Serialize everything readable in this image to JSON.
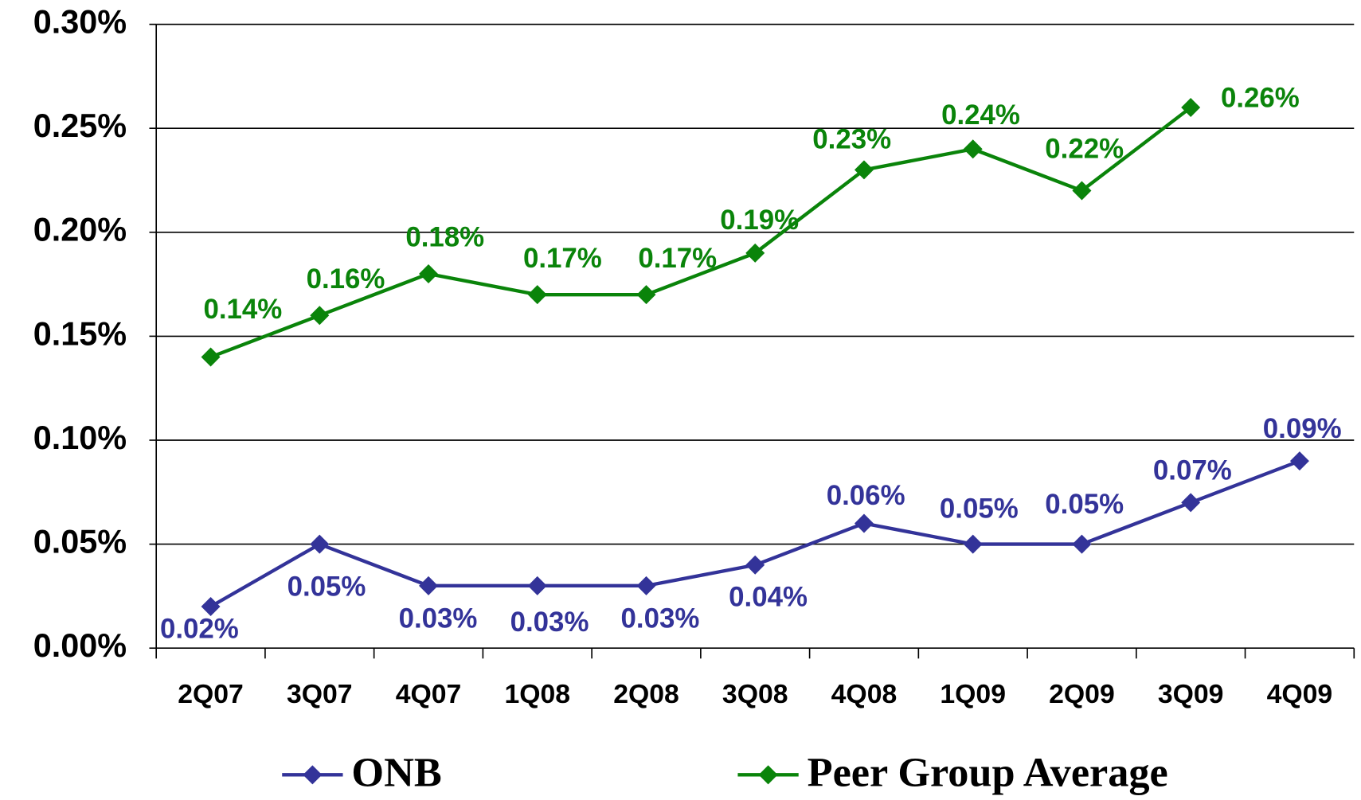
{
  "chart_data": {
    "type": "line",
    "categories": [
      "2Q07",
      "3Q07",
      "4Q07",
      "1Q08",
      "2Q08",
      "3Q08",
      "4Q08",
      "1Q09",
      "2Q09",
      "3Q09",
      "4Q09"
    ],
    "series": [
      {
        "name": "ONB",
        "color": "#333399",
        "values": [
          0.02,
          0.05,
          0.03,
          0.03,
          0.03,
          0.04,
          0.06,
          0.05,
          0.05,
          0.07,
          0.09
        ],
        "value_labels": [
          "0.02%",
          "0.05%",
          "0.03%",
          "0.03%",
          "0.03%",
          "0.04%",
          "0.06%",
          "0.05%",
          "0.05%",
          "0.07%",
          "0.09%"
        ]
      },
      {
        "name": "Peer Group Average",
        "color": "#0a840a",
        "values": [
          0.14,
          0.16,
          0.18,
          0.17,
          0.17,
          0.19,
          0.23,
          0.24,
          0.22,
          0.26,
          null
        ],
        "value_labels": [
          "0.14%",
          "0.16%",
          "0.18%",
          "0.17%",
          "0.17%",
          "0.19%",
          "0.23%",
          "0.24%",
          "0.22%",
          "0.26%",
          null
        ]
      }
    ],
    "ylim": [
      0,
      0.3
    ],
    "yticks": [
      {
        "value": 0,
        "label": "0.00%"
      },
      {
        "value": 0.05,
        "label": "0.05%"
      },
      {
        "value": 0.1,
        "label": "0.10%"
      },
      {
        "value": 0.15,
        "label": "0.15%"
      },
      {
        "value": 0.2,
        "label": "0.20%"
      },
      {
        "value": 0.25,
        "label": "0.25%"
      },
      {
        "value": 0.3,
        "label": "0.30%"
      }
    ],
    "grid": true,
    "legend": "bottom"
  }
}
